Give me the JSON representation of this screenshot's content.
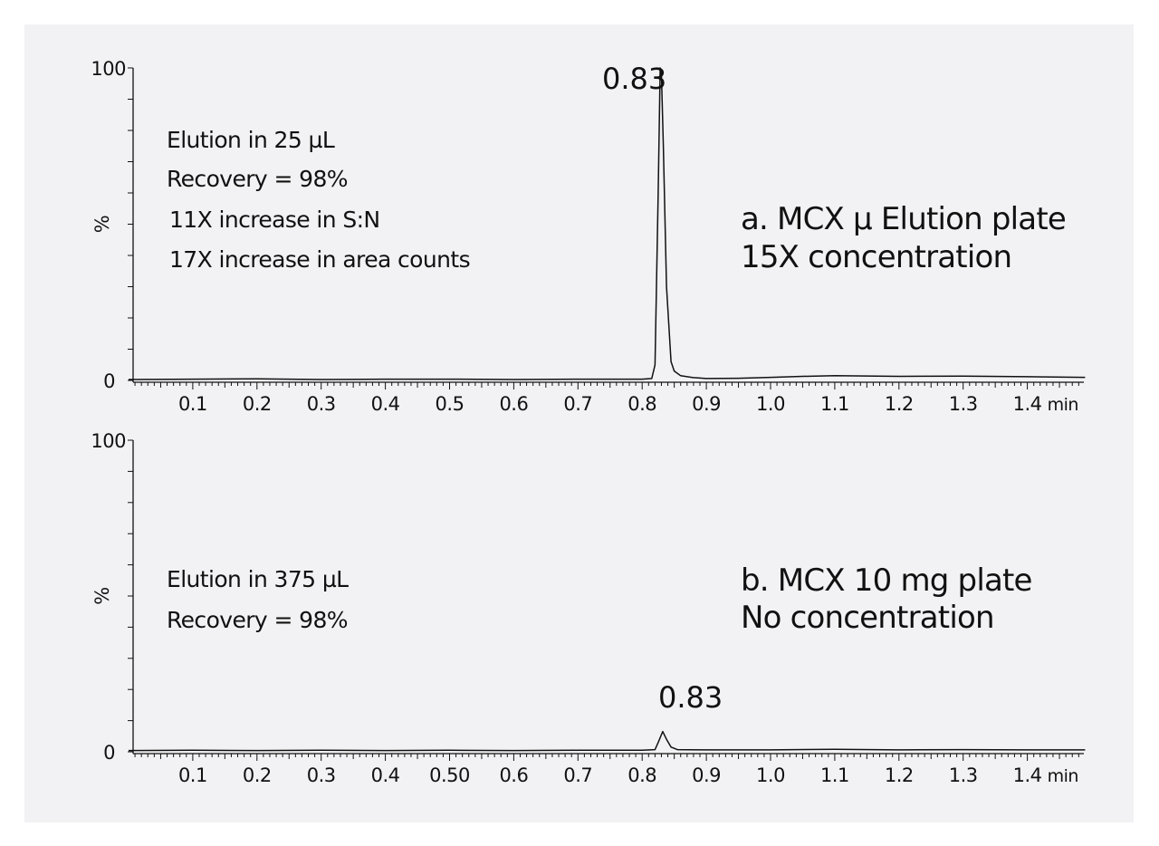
{
  "chart_data": [
    {
      "type": "line",
      "title": "",
      "xlabel": "min",
      "ylabel": "%",
      "xlim": [
        0,
        1.49
      ],
      "ylim": [
        0,
        100
      ],
      "x_tick_labels": [
        "0.1",
        "0.2",
        "0.3",
        "0.4",
        "0.5",
        "0.6",
        "0.7",
        "0.8",
        "0.9",
        "1.0",
        "1.1",
        "1.2",
        "1.3",
        "1.4"
      ],
      "x_ticks": [
        0.1,
        0.2,
        0.3,
        0.4,
        0.5,
        0.6,
        0.7,
        0.8,
        0.9,
        1.0,
        1.1,
        1.2,
        1.3,
        1.4
      ],
      "y_tick_labels": [
        "0",
        "100"
      ],
      "grid": false,
      "peak_label": "0.83",
      "peak_label_x": 0.83,
      "panel_label": [
        "a. MCX µ Elution plate",
        "15X concentration"
      ],
      "annotations": [
        "Elution in 25 µL",
        "Recovery = 98%",
        "11X increase in S:N",
        "17X increase in area counts"
      ],
      "series": [
        {
          "x": [
            0.0,
            0.1,
            0.2,
            0.3,
            0.4,
            0.5,
            0.6,
            0.7,
            0.8,
            0.815,
            0.82,
            0.825,
            0.828,
            0.83,
            0.833,
            0.838,
            0.845,
            0.85,
            0.86,
            0.88,
            0.9,
            0.95,
            1.0,
            1.05,
            1.1,
            1.2,
            1.3,
            1.4,
            1.49
          ],
          "y": [
            0.3,
            0.4,
            0.5,
            0.3,
            0.4,
            0.4,
            0.3,
            0.4,
            0.4,
            0.6,
            5,
            60,
            100,
            98,
            75,
            30,
            6,
            3,
            1.5,
            0.9,
            0.6,
            0.7,
            1.0,
            1.3,
            1.5,
            1.3,
            1.4,
            1.2,
            1.0
          ]
        }
      ]
    },
    {
      "type": "line",
      "title": "",
      "xlabel": "min",
      "ylabel": "%",
      "xlim": [
        0,
        1.49
      ],
      "ylim": [
        0,
        100
      ],
      "x_tick_labels": [
        "0.1",
        "0.2",
        "0.3",
        "0.4",
        "0.50",
        "0.6",
        "0.7",
        "0.8",
        "0.9",
        "1.0",
        "1.1",
        "1.2",
        "1.3",
        "1.4"
      ],
      "x_ticks": [
        0.1,
        0.2,
        0.3,
        0.4,
        0.5,
        0.6,
        0.7,
        0.8,
        0.9,
        1.0,
        1.1,
        1.2,
        1.3,
        1.4
      ],
      "y_tick_labels": [
        "0",
        "100"
      ],
      "grid": false,
      "peak_label": "0.83",
      "peak_label_x": 0.83,
      "panel_label": [
        "b. MCX 10 mg plate",
        "No concentration"
      ],
      "annotations": [
        "Elution in 375 µL",
        "Recovery = 98%"
      ],
      "series": [
        {
          "x": [
            0.0,
            0.1,
            0.2,
            0.3,
            0.4,
            0.5,
            0.6,
            0.7,
            0.8,
            0.82,
            0.825,
            0.832,
            0.838,
            0.845,
            0.855,
            0.9,
            1.0,
            1.1,
            1.2,
            1.3,
            1.4,
            1.49
          ],
          "y": [
            0.4,
            0.5,
            0.4,
            0.5,
            0.4,
            0.5,
            0.4,
            0.5,
            0.5,
            0.7,
            3,
            6.5,
            4,
            1.5,
            0.7,
            0.6,
            0.6,
            0.8,
            0.6,
            0.7,
            0.6,
            0.6
          ]
        }
      ]
    }
  ]
}
